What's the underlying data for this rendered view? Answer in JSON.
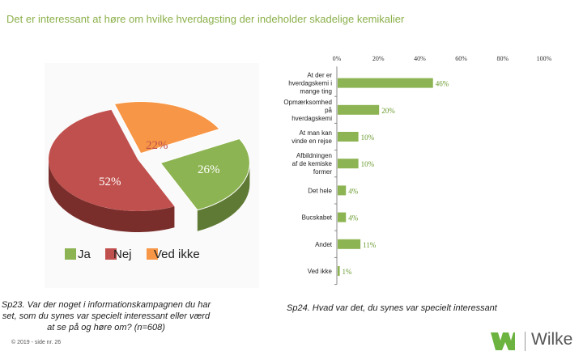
{
  "title": "Det er interessant at høre om hvilke hverdagsting der indeholder skadelige kemikalier",
  "captions": {
    "left": "Sp23. Var der noget i informationskampagnen du har set, som du synes var specielt interessant eller værd at se på og høre om? (n=608)",
    "right": "Sp24. Hvad var det, du synes var specielt interessant"
  },
  "footer": "© 2019 - side nr. 26",
  "logo": {
    "text": "Wilke"
  },
  "colors": {
    "ja": "#8db452",
    "nej": "#c0504d",
    "ved_ikke": "#f79646",
    "bar": "#8db452",
    "title": "#8bb04a"
  },
  "chart_data": [
    {
      "type": "pie",
      "title": "",
      "slices": [
        {
          "name": "Ja",
          "value": 26
        },
        {
          "name": "Nej",
          "value": 52
        },
        {
          "name": "Ved ikke",
          "value": 22
        }
      ],
      "labels": [
        "26%",
        "52%",
        "22%"
      ],
      "legend": [
        "Ja",
        "Nej",
        "Ved ikke"
      ],
      "legend_placement": "bottom"
    },
    {
      "type": "bar",
      "orientation": "horizontal",
      "title": "",
      "categories": [
        "At der er hverdagskemi i mange ting",
        "Opmærksomhed på hverdagskemi",
        "At man kan vinde en rejse",
        "Afbildningen af de kemiske former",
        "Det hele",
        "Bucskabet",
        "Andet",
        "Ved ikke"
      ],
      "values": [
        46,
        20,
        10,
        10,
        4,
        4,
        11,
        1
      ],
      "labels": [
        "46%",
        "20%",
        "10%",
        "10%",
        "4%",
        "4%",
        "11%",
        "1%"
      ],
      "xticks": [
        "0%",
        "20%",
        "40%",
        "60%",
        "80%",
        "100%"
      ],
      "xlim": [
        0,
        100
      ],
      "grid": false
    }
  ]
}
